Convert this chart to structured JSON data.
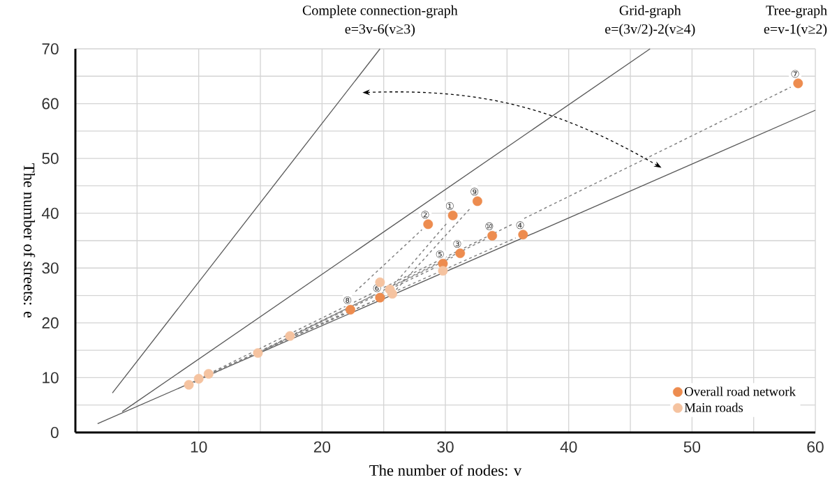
{
  "chart_data": {
    "type": "scatter",
    "xlabel": "The number of nodes: v",
    "ylabel": "The number of streets: e",
    "xlim": [
      0,
      60
    ],
    "ylim": [
      0,
      70
    ],
    "xticks": [
      {
        "value": 5,
        "label": null
      },
      10,
      {
        "value": 15,
        "label": null
      },
      20,
      {
        "value": 25,
        "label": null
      },
      30,
      {
        "value": 35,
        "label": null
      },
      40,
      {
        "value": 45,
        "label": null
      },
      50,
      {
        "value": 55,
        "label": null
      },
      60
    ],
    "yticks": [
      0,
      {
        "value": 5,
        "label": null
      },
      10,
      {
        "value": 15,
        "label": null
      },
      20,
      {
        "value": 25,
        "label": null
      },
      30,
      {
        "value": 35,
        "label": null
      },
      40,
      {
        "value": 45,
        "label": null
      },
      50,
      {
        "value": 55,
        "label": null
      },
      60,
      {
        "value": 65,
        "label": null
      },
      70
    ],
    "grid": true,
    "legend": "bottom right",
    "series": [
      {
        "name": "Overall road network",
        "color": "#ed8c4f",
        "type": "scatter",
        "marker": "circle",
        "x": [
          30.6,
          28.6,
          31.2,
          36.3,
          29.8,
          24.7,
          58.6,
          22.3,
          32.6,
          33.8
        ],
        "values": [
          39.6,
          38.0,
          32.7,
          36.1,
          30.8,
          24.6,
          63.7,
          22.4,
          42.2,
          35.9
        ]
      },
      {
        "name": "Main roads",
        "color": "#f5c3a0",
        "type": "scatter",
        "marker": "circle",
        "x": [
          9.2,
          10.0,
          10.8,
          14.8,
          17.4,
          24.7,
          25.5,
          25.7,
          29.8
        ],
        "values": [
          8.7,
          9.8,
          10.7,
          14.5,
          17.6,
          27.4,
          26.1,
          25.3,
          29.5
        ]
      },
      {
        "type": "line",
        "color": "#595959",
        "line_style": "solid",
        "marker": "none",
        "x": [
          3.0,
          24.7
        ],
        "values": [
          7.2,
          70
        ]
      },
      {
        "type": "line",
        "color": "#595959",
        "line_style": "solid",
        "marker": "none",
        "x": [
          3.8,
          46.6
        ],
        "values": [
          3.8,
          70
        ]
      },
      {
        "type": "line",
        "color": "#595959",
        "line_style": "solid",
        "marker": "none",
        "x": [
          1.8,
          60
        ],
        "values": [
          1.6,
          58.8
        ]
      },
      {
        "type": "line",
        "color": "#808080",
        "line_style": "dashed",
        "marker": "none",
        "x": [
          22.7,
          28.1
        ],
        "values": [
          25.7,
          37.0
        ]
      },
      {
        "type": "line",
        "color": "#808080",
        "line_style": "dashed",
        "marker": "none",
        "x": [
          25.5,
          30.2
        ],
        "values": [
          26.1,
          38.4
        ]
      },
      {
        "type": "line",
        "color": "#808080",
        "line_style": "dashed",
        "marker": "none",
        "x": [
          25.7,
          32.1
        ],
        "values": [
          25.3,
          41.1
        ]
      },
      {
        "type": "line",
        "color": "#808080",
        "line_style": "dashed",
        "marker": "none",
        "x": [
          10.8,
          58.0
        ],
        "values": [
          10.7,
          63.0
        ]
      },
      {
        "type": "line",
        "color": "#808080",
        "line_style": "dashed",
        "marker": "none",
        "x": [
          10.0,
          35.7
        ],
        "values": [
          9.8,
          35.5
        ]
      },
      {
        "type": "line",
        "color": "#808080",
        "line_style": "dashed",
        "marker": "none",
        "x": [
          14.8,
          33.2
        ],
        "values": [
          14.5,
          35.2
        ]
      },
      {
        "type": "line",
        "color": "#808080",
        "line_style": "dashed",
        "marker": "none",
        "x": [
          17.4,
          30.6
        ],
        "values": [
          17.6,
          32.0
        ]
      },
      {
        "type": "line",
        "color": "#808080",
        "line_style": "dashed",
        "marker": "none",
        "x": [
          9.2,
          29.2
        ],
        "values": [
          8.7,
          30.1
        ]
      },
      {
        "type": "line",
        "color": "#808080",
        "line_style": "dashed",
        "marker": "none",
        "x": [
          10.0,
          24.1
        ],
        "values": [
          9.8,
          23.9
        ]
      },
      {
        "type": "line",
        "color": "#808080",
        "line_style": "dashed",
        "marker": "none",
        "x": [
          9.2,
          21.7
        ],
        "values": [
          8.7,
          21.7
        ]
      }
    ],
    "annotations": [
      "Complete connection-graph",
      "e=3v-6(v≥3)",
      "Grid-graph",
      "e=(3v/2)-2(v≥4)",
      "Tree-graph",
      "e=v-1(v≥2)",
      {
        "text": "①",
        "x": 30.6,
        "y": 39.6
      },
      {
        "text": "②",
        "x": 28.6,
        "y": 38.0
      },
      {
        "text": "③",
        "x": 31.2,
        "y": 32.7
      },
      {
        "text": "④",
        "x": 36.3,
        "y": 36.1
      },
      {
        "text": "⑤",
        "x": 29.8,
        "y": 30.8
      },
      {
        "text": "⑥",
        "x": 24.7,
        "y": 24.6
      },
      {
        "text": "⑦",
        "x": 58.6,
        "y": 63.7
      },
      {
        "text": "⑧",
        "x": 22.3,
        "y": 22.4
      },
      {
        "text": "⑨",
        "x": 32.6,
        "y": 42.2
      },
      {
        "text": "⑩",
        "x": 33.8,
        "y": 35.9
      }
    ]
  }
}
